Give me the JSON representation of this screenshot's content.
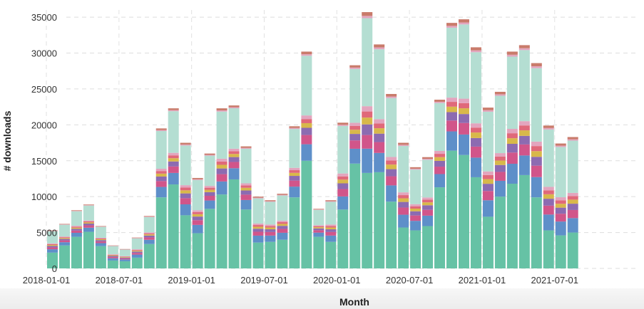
{
  "chart_data": {
    "type": "bar",
    "stacked": true,
    "title": "",
    "xlabel": "Month",
    "ylabel": "# downloads",
    "ylim": [
      0,
      36000
    ],
    "grid": true,
    "y_ticks": [
      "0",
      "5000",
      "10000",
      "15000",
      "20000",
      "25000",
      "30000",
      "35000"
    ],
    "x_ticks": [
      "2018-01-01",
      "2018-07-01",
      "2019-01-01",
      "2019-07-01",
      "2020-01-01",
      "2020-07-01",
      "2021-01-01",
      "2021-07-01"
    ],
    "x_tick_months": [
      0,
      6,
      12,
      18,
      24,
      30,
      36,
      42
    ],
    "colors": [
      "#66c2a5",
      "#5e8fc9",
      "#d1558a",
      "#8c6bb1",
      "#d8b84a",
      "#e0697a",
      "#e3a5be",
      "#b4ded2",
      "#c4ccf0",
      "#c97b6b"
    ],
    "categories": [
      "2018-01",
      "2018-02",
      "2018-03",
      "2018-04",
      "2018-05",
      "2018-06",
      "2018-07",
      "2018-08",
      "2018-09",
      "2018-10",
      "2018-11",
      "2018-12",
      "2019-01",
      "2019-02",
      "2019-03",
      "2019-04",
      "2019-05",
      "2019-06",
      "2019-07",
      "2019-08",
      "2019-09",
      "2019-10",
      "2019-11",
      "2019-12",
      "2020-01",
      "2020-02",
      "2020-03",
      "2020-04",
      "2020-05",
      "2020-06",
      "2020-07",
      "2020-08",
      "2020-09",
      "2020-10",
      "2020-11",
      "2020-12",
      "2021-01",
      "2021-02",
      "2021-03",
      "2021-04",
      "2021-05",
      "2021-06",
      "2021-07",
      "2021-08"
    ],
    "totals": [
      5300,
      6200,
      8100,
      8900,
      5900,
      3200,
      2700,
      4300,
      7300,
      19500,
      22300,
      17500,
      12600,
      16000,
      22300,
      22700,
      17000,
      10000,
      9500,
      10400,
      19800,
      30200,
      8300,
      9500,
      20300,
      28300,
      35700,
      31200,
      24300,
      17500,
      14100,
      15500,
      23500,
      34200,
      34700,
      30800,
      22400,
      24600,
      30200,
      31100,
      28600,
      19900,
      17400,
      18300
    ],
    "base_values": [
      2200,
      3200,
      4400,
      5100,
      3100,
      1100,
      1000,
      1500,
      3400,
      9900,
      11700,
      7400,
      4900,
      8300,
      10300,
      12400,
      8200,
      3600,
      3700,
      4000,
      9900,
      15000,
      4400,
      3700,
      8200,
      14600,
      13300,
      13400,
      9300,
      5700,
      5300,
      5900,
      11300,
      16400,
      15800,
      12700,
      7200,
      10000,
      11800,
      13000,
      9900,
      5300,
      4600,
      5000
    ]
  }
}
